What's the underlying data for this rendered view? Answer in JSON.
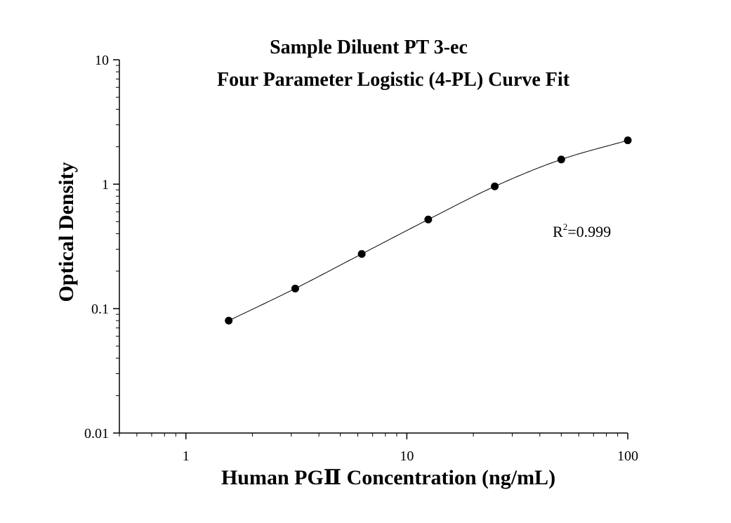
{
  "chart_data": {
    "type": "scatter",
    "title_lines": [
      "Sample Diluent PT 3-ec",
      "Four Parameter Logistic (4-PL) Curve Fit"
    ],
    "xlabel": "Human PGⅡ Concentration (ng/mL)",
    "ylabel": "Optical Density",
    "x_scale": "log",
    "y_scale": "log",
    "xlim": [
      0.5,
      100
    ],
    "ylim": [
      0.01,
      10
    ],
    "x_tick_labels": [
      "1",
      "10",
      "100"
    ],
    "y_tick_labels": [
      "0.01",
      "0.1",
      "1",
      "10"
    ],
    "grid": false,
    "legend": "none",
    "series": [
      {
        "x": [
          1.5625,
          3.125,
          6.25,
          12.5,
          25,
          50,
          100
        ],
        "y": [
          0.08,
          0.145,
          0.275,
          0.52,
          0.96,
          1.58,
          2.25
        ],
        "marker": "filled-circle",
        "color": "#000000"
      }
    ],
    "fit_curve": {
      "model": "4-PL",
      "color": "#000000",
      "x_range": [
        1.5625,
        100
      ]
    },
    "annotations": [
      {
        "text_base": "R",
        "text_sup": "2",
        "text_rest": "=0.999",
        "position": "right-middle"
      }
    ]
  }
}
